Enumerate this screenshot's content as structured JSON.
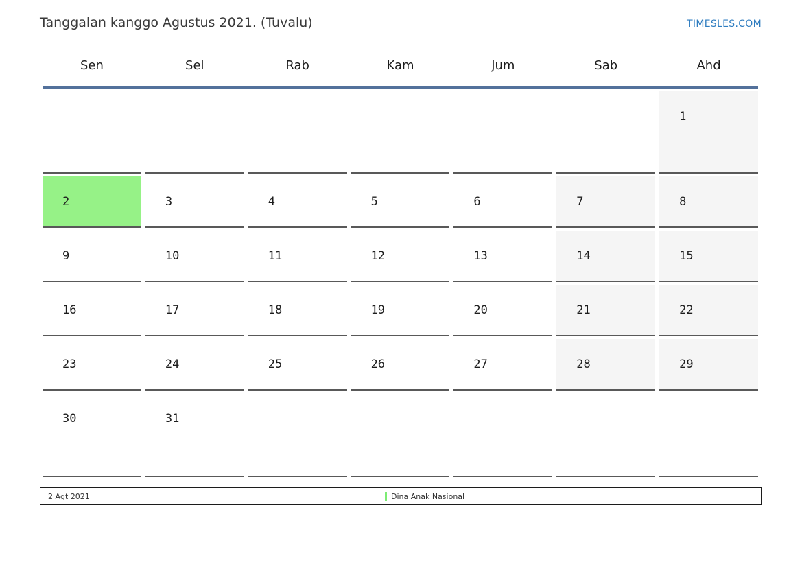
{
  "header": {
    "title": "Tanggalan kanggo Agustus 2021. (Tuvalu)",
    "site_link": "TIMESLES.COM"
  },
  "weekdays": [
    "Sen",
    "Sel",
    "Rab",
    "Kam",
    "Jum",
    "Sab",
    "Ahd"
  ],
  "calendar": {
    "month": "Agustus 2021",
    "weeks": [
      [
        null,
        null,
        null,
        null,
        null,
        null,
        {
          "day": "1",
          "weekend": true
        }
      ],
      [
        {
          "day": "2",
          "holiday": true
        },
        {
          "day": "3"
        },
        {
          "day": "4"
        },
        {
          "day": "5"
        },
        {
          "day": "6"
        },
        {
          "day": "7",
          "weekend": true
        },
        {
          "day": "8",
          "weekend": true
        }
      ],
      [
        {
          "day": "9"
        },
        {
          "day": "10"
        },
        {
          "day": "11"
        },
        {
          "day": "12"
        },
        {
          "day": "13"
        },
        {
          "day": "14",
          "weekend": true
        },
        {
          "day": "15",
          "weekend": true
        }
      ],
      [
        {
          "day": "16"
        },
        {
          "day": "17"
        },
        {
          "day": "18"
        },
        {
          "day": "19"
        },
        {
          "day": "20"
        },
        {
          "day": "21",
          "weekend": true
        },
        {
          "day": "22",
          "weekend": true
        }
      ],
      [
        {
          "day": "23"
        },
        {
          "day": "24"
        },
        {
          "day": "25"
        },
        {
          "day": "26"
        },
        {
          "day": "27"
        },
        {
          "day": "28",
          "weekend": true
        },
        {
          "day": "29",
          "weekend": true
        }
      ],
      [
        {
          "day": "30"
        },
        {
          "day": "31"
        },
        null,
        null,
        null,
        null,
        null
      ]
    ]
  },
  "legend": {
    "date": "2 Agt 2021",
    "holiday_name": "Dina Anak Nasional"
  },
  "colors": {
    "header_line": "#53719b",
    "cell_border": "#595959",
    "weekend_bg": "#f5f5f5",
    "holiday_bg": "#96f287",
    "legend_bar": "#7dec74",
    "link_blue": "#2f7dc0"
  }
}
